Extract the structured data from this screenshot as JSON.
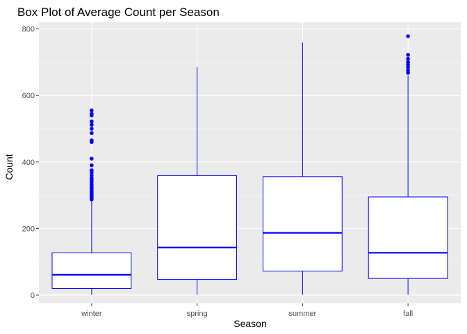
{
  "chart_data": {
    "type": "box",
    "title": "Box Plot of Average Count per Season",
    "xlabel": "Season",
    "ylabel": "Count",
    "ylim": [
      -25,
      820
    ],
    "yticks": [
      0,
      200,
      400,
      600,
      800
    ],
    "categories": [
      "winter",
      "spring",
      "summer",
      "fall"
    ],
    "boxes": [
      {
        "category": "winter",
        "whisker_low": 1,
        "q1": 20,
        "median": 61,
        "q3": 127,
        "whisker_high": 283,
        "outliers": [
          287,
          291,
          296,
          300,
          304,
          309,
          313,
          318,
          322,
          327,
          333,
          340,
          346,
          352,
          360,
          368,
          375,
          390,
          410,
          460,
          465,
          487,
          500,
          512,
          522,
          540,
          545,
          555
        ]
      },
      {
        "category": "spring",
        "whisker_low": 1,
        "q1": 47,
        "median": 143,
        "q3": 359,
        "whisker_high": 686,
        "outliers": []
      },
      {
        "category": "summer",
        "whisker_low": 1,
        "q1": 72,
        "median": 187,
        "q3": 356,
        "whisker_high": 759,
        "outliers": []
      },
      {
        "category": "fall",
        "whisker_low": 1,
        "q1": 50,
        "median": 127,
        "q3": 295,
        "whisker_high": 660,
        "outliers": [
          668,
          675,
          684,
          692,
          700,
          710,
          722,
          778
        ]
      }
    ],
    "grid": true,
    "colors": {
      "panel_background": "#ebebeb",
      "gridline": "#ffffff",
      "box_stroke": "#0000ff",
      "box_fill": "#ffffff",
      "outlier": "#0000ff",
      "tick_text": "#4d4d4d"
    }
  }
}
